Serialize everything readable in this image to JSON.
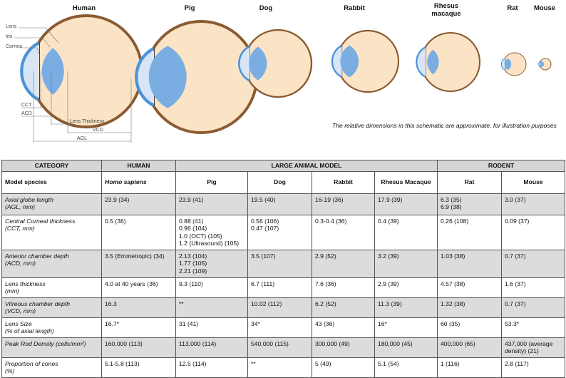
{
  "figure": {
    "species": [
      "Human",
      "Pig",
      "Dog",
      "Rabbit",
      "Rhesus macaque",
      "Rat",
      "Mouse"
    ],
    "part_labels": [
      "Lens",
      "Iris",
      "Cornea"
    ],
    "dimension_labels": [
      "CCT",
      "ACD",
      "Lens Thickness",
      "VCD",
      "AGL"
    ],
    "caption": "The relative dimensions in this schematic are approximate, for illustration purposes"
  },
  "table": {
    "header": [
      "CATEGORY",
      "HUMAN",
      "LARGE ANIMAL MODEL",
      "RODENT"
    ],
    "subheader": [
      "Model species",
      "Homo sapiens",
      "Pig",
      "Dog",
      "Rabbit",
      "Rhesus Macaque",
      "Rat",
      "Mouse"
    ],
    "rows": [
      [
        [
          "Axial globe length",
          "(AGL, mm)"
        ],
        "23.9 (34)",
        "23.9 (41)",
        "19.5 (40)",
        "16-19 (36)",
        "17.9 (39)",
        [
          "6.3 (35)",
          "6.9 (38)"
        ],
        "3.0 (37)"
      ],
      [
        [
          "Central Corneal thickness",
          "(CCT, mm)"
        ],
        "0.5 (36)",
        [
          "0.88 (41)",
          "0.96 (104)",
          "1.0 (OCT) (105)",
          "1.2 (Ultrasound) (105)"
        ],
        [
          "0.56 (106)",
          "0.47 (107)"
        ],
        "0.3-0.4 (36)",
        "0.4 (39)",
        "0.26 (108)",
        "0.09 (37)"
      ],
      [
        [
          "Anterior chamber depth",
          "(ACD, mm)"
        ],
        "3.5 (Emmetropic) (34)",
        [
          "2.13 (104)",
          "1.77 (105)",
          "2.21 (109)"
        ],
        "3.5 (107)",
        "2.9 (52)",
        "3.2 (39)",
        "1.03 (38)",
        "0.7 (37)"
      ],
      [
        [
          "Lens thickness",
          "(mm)"
        ],
        "4.0 at 40 years (36)",
        "9.3 (110)",
        "6.7 (111)",
        "7.6 (36)",
        "2.9 (39)",
        "4.57 (38)",
        "1.6 (37)"
      ],
      [
        [
          "Vitreous chamber depth",
          "(VCD, mm)"
        ],
        "16.3",
        "**",
        "10.02 (112)",
        "6.2 (52)",
        "11.3 (39)",
        "1.32 (38)",
        "0.7 (37)"
      ],
      [
        [
          "Lens Size",
          "(% of axial length)"
        ],
        "16.7*",
        "31 (41)",
        "34*",
        "43 (36)",
        "16*",
        "60 (35)",
        "53.3*"
      ],
      [
        [
          "Peak Rod Density (cells/mm²)"
        ],
        "160,000 (113)",
        "113,000 (114)",
        "540,000 (115)",
        "300,000 (49)",
        "180,000 (45)",
        "400,000 (65)",
        [
          "437,000 (average",
          "density) (21)"
        ]
      ],
      [
        [
          "Proportion of cones",
          "(%)"
        ],
        "5.1-5.8 (113)",
        "12.5 (114)",
        "**",
        "5 (49)",
        "5.1 (54)",
        "1 (116)",
        "2.8 (117)"
      ]
    ]
  }
}
